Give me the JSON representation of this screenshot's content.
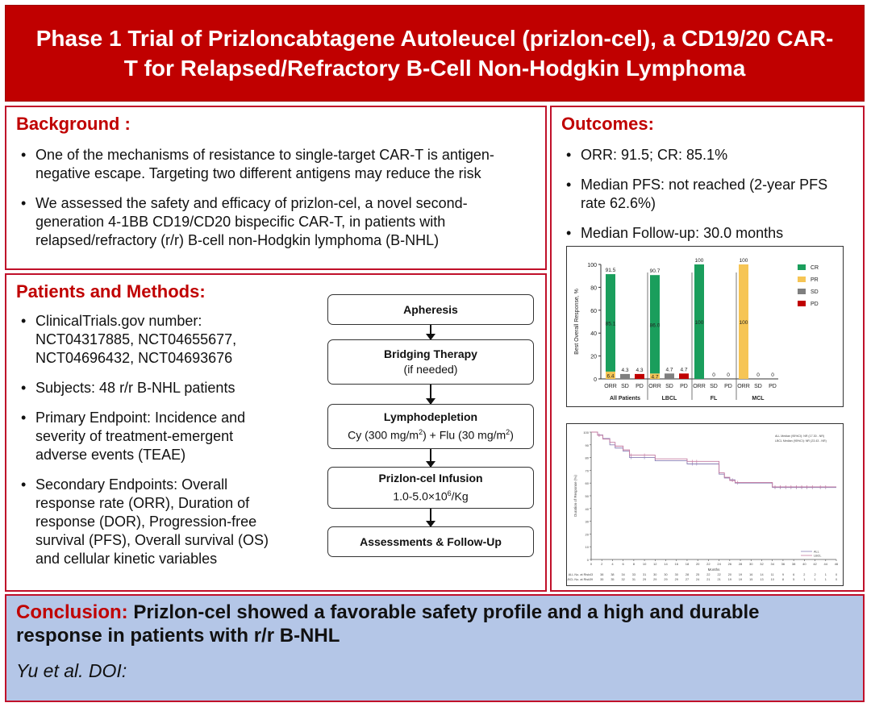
{
  "title": "Phase 1 Trial of Prizloncabtagene Autoleucel (prizlon-cel), a CD19/20 CAR-T for Relapsed/Refractory B-Cell Non-Hodgkin Lymphoma",
  "background": {
    "heading": "Background :",
    "bullets": [
      "One of the mechanisms of resistance to single-target CAR-T is antigen-negative escape. Targeting two different antigens may reduce the risk",
      "We assessed the safety and efficacy of prizlon-cel, a novel second-generation 4-1BB CD19/CD20 bispecific CAR-T, in patients with relapsed/refractory (r/r) B-cell non-Hodgkin lymphoma (B-NHL)"
    ]
  },
  "methods": {
    "heading": "Patients and Methods:",
    "bullets": [
      "ClinicalTrials.gov number: NCT04317885, NCT04655677, NCT04696432, NCT04693676",
      "Subjects: 48 r/r B-NHL patients",
      "Primary Endpoint: Incidence and severity of treatment-emergent adverse events (TEAE)",
      "Secondary Endpoints: Overall response rate (ORR), Duration of response (DOR), Progression-free survival (PFS), Overall survival (OS) and cellular kinetic variables"
    ],
    "flow": [
      {
        "title": "Apheresis",
        "sub": ""
      },
      {
        "title": "Bridging Therapy",
        "sub": "(if needed)"
      },
      {
        "title": "Lymphodepletion",
        "sub_parts": [
          "Cy (300 mg/m",
          "2",
          ") + Flu (30 mg/m",
          "2",
          ")"
        ]
      },
      {
        "title": "Prizlon-cel Infusion",
        "sub_parts": [
          "1.0-5.0×10",
          "6",
          "/Kg"
        ]
      },
      {
        "title": "Assessments & Follow-Up",
        "sub": ""
      }
    ]
  },
  "outcomes": {
    "heading": "Outcomes:",
    "bullets": [
      "ORR: 91.5; CR: 85.1%",
      "Median PFS: not reached (2-year PFS rate 62.6%)",
      "Median Follow-up: 30.0 months"
    ]
  },
  "conclusion": {
    "label": "Conclusion:",
    "text": "Prizlon-cel showed a favorable safety profile and a high and durable response in patients with r/r B-NHL",
    "citation": "Yu et al. DOI:"
  },
  "chart_data": [
    {
      "type": "bar",
      "ylabel": "Best Overall Response, %",
      "ylim": [
        0,
        100
      ],
      "yticks": [
        0,
        20,
        40,
        60,
        80,
        100
      ],
      "legend": [
        "CR",
        "PR",
        "SD",
        "PD"
      ],
      "colors": {
        "CR": "#1a9e5c",
        "PR": "#f6c555",
        "SD": "#7f7f7f",
        "PD": "#c00000"
      },
      "groups": [
        {
          "name": "All Patients",
          "bars": [
            {
              "label": "ORR",
              "segments": [
                {
                  "key": "PR",
                  "value": 6.4,
                  "text": "6.4"
                },
                {
                  "key": "CR",
                  "value": 85.1,
                  "text": "85.1"
                }
              ],
              "total": "91.5"
            },
            {
              "label": "SD",
              "segments": [
                {
                  "key": "SD",
                  "value": 4.3
                }
              ],
              "total": "4.3"
            },
            {
              "label": "PD",
              "segments": [
                {
                  "key": "PD",
                  "value": 4.3
                }
              ],
              "total": "4.3"
            }
          ]
        },
        {
          "name": "LBCL",
          "bars": [
            {
              "label": "ORR",
              "segments": [
                {
                  "key": "PR",
                  "value": 4.7,
                  "text": "4.7"
                },
                {
                  "key": "CR",
                  "value": 86.0,
                  "text": "86.0"
                }
              ],
              "total": "90.7"
            },
            {
              "label": "SD",
              "segments": [
                {
                  "key": "SD",
                  "value": 4.7
                }
              ],
              "total": "4.7"
            },
            {
              "label": "PD",
              "segments": [
                {
                  "key": "PD",
                  "value": 4.7
                }
              ],
              "total": "4.7"
            }
          ]
        },
        {
          "name": "FL",
          "bars": [
            {
              "label": "ORR",
              "segments": [
                {
                  "key": "CR",
                  "value": 100,
                  "text": "100"
                }
              ],
              "total": "100"
            },
            {
              "label": "SD",
              "segments": [],
              "total": "0"
            },
            {
              "label": "PD",
              "segments": [],
              "total": "0"
            }
          ]
        },
        {
          "name": "MCL",
          "bars": [
            {
              "label": "ORR",
              "segments": [
                {
                  "key": "PR",
                  "value": 100,
                  "text": "100"
                }
              ],
              "total": "100"
            },
            {
              "label": "SD",
              "segments": [],
              "total": "0"
            },
            {
              "label": "PD",
              "segments": [],
              "total": "0"
            }
          ]
        }
      ]
    },
    {
      "type": "line",
      "xlabel": "Months",
      "ylabel": "Duration of Response (%)",
      "xlim": [
        0,
        46
      ],
      "xticks": [
        0,
        2,
        4,
        6,
        8,
        10,
        12,
        14,
        16,
        18,
        20,
        22,
        24,
        26,
        28,
        30,
        32,
        34,
        36,
        38,
        40,
        42,
        44,
        46
      ],
      "ylim": [
        0,
        100
      ],
      "yticks": [
        0,
        10,
        20,
        30,
        40,
        50,
        60,
        70,
        80,
        90,
        100
      ],
      "annotations": [
        "ALL Median (95%CI): NR (17.30 - NR)",
        "LBCL Median (95%CI): NR (23.43 - NR)"
      ],
      "legend": [
        "ALL",
        "LBCL"
      ],
      "series": [
        {
          "name": "ALL",
          "color": "#8a7fb5",
          "x": [
            0,
            1.2,
            2.2,
            3.5,
            4.5,
            6,
            7.2,
            12,
            18,
            24,
            25,
            26,
            27,
            28,
            34,
            47
          ],
          "y": [
            100,
            97.7,
            95,
            90,
            87.5,
            85,
            80,
            77.5,
            75,
            67,
            64,
            62.5,
            60,
            60,
            56.5,
            56.5
          ]
        },
        {
          "name": "LBCL",
          "color": "#c47aa0",
          "x": [
            0,
            1.2,
            2.2,
            3.5,
            4.5,
            6,
            7.2,
            12,
            18,
            24,
            25,
            26,
            27,
            28,
            34,
            47
          ],
          "y": [
            100,
            97.5,
            94.5,
            92,
            89,
            86,
            82,
            79,
            77,
            68,
            64.5,
            62,
            60.5,
            60.5,
            57,
            57
          ]
        }
      ],
      "risk_table": {
        "rows": [
          {
            "label": "ALL No. at Risk",
            "values": [
              43,
              38,
              38,
              34,
              33,
              31,
              30,
              30,
              30,
              28,
              25,
              22,
              22,
              20,
              19,
              16,
              14,
              11,
              9,
              6,
              2,
              2,
              1,
              0
            ]
          },
          {
            "label": "LBCL No. at Risk",
            "values": [
              39,
              35,
              35,
              32,
              31,
              29,
              29,
              29,
              29,
              27,
              24,
              21,
              21,
              19,
              19,
              15,
              13,
              10,
              8,
              5,
              1,
              1,
              1,
              0
            ]
          }
        ]
      }
    }
  ]
}
